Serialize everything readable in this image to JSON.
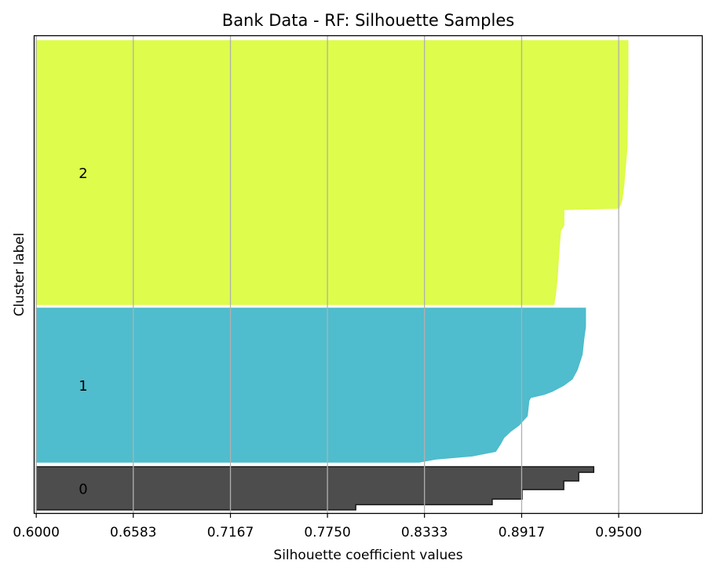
{
  "chart_data": {
    "type": "area",
    "orientation": "horizontal",
    "title": "Bank Data - RF: Silhouette Samples",
    "xlabel": "Silhouette coefficient values",
    "ylabel": "Cluster label",
    "xlim": [
      0.5985,
      1.0
    ],
    "xticks": [
      "0.6000",
      "0.6583",
      "0.7167",
      "0.7750",
      "0.8333",
      "0.8917",
      "0.9500"
    ],
    "grid": "vertical",
    "clusters": [
      {
        "label": "0",
        "color": "#4d4d4d",
        "profile": [
          [
            0.0,
            0.935
          ],
          [
            0.13,
            0.935
          ],
          [
            0.13,
            0.926
          ],
          [
            0.33,
            0.926
          ],
          [
            0.33,
            0.917
          ],
          [
            0.53,
            0.917
          ],
          [
            0.53,
            0.892
          ],
          [
            0.75,
            0.892
          ],
          [
            0.75,
            0.874
          ],
          [
            0.88,
            0.874
          ],
          [
            0.88,
            0.792
          ],
          [
            1.0,
            0.792
          ]
        ]
      },
      {
        "label": "1",
        "color": "#4bbccc",
        "profile": [
          [
            0.0,
            0.93
          ],
          [
            0.05,
            0.93
          ],
          [
            0.12,
            0.93
          ],
          [
            0.2,
            0.929
          ],
          [
            0.3,
            0.928
          ],
          [
            0.4,
            0.925
          ],
          [
            0.46,
            0.922
          ],
          [
            0.5,
            0.917
          ],
          [
            0.54,
            0.91
          ],
          [
            0.56,
            0.905
          ],
          [
            0.58,
            0.897
          ],
          [
            0.6,
            0.896
          ],
          [
            0.7,
            0.895
          ],
          [
            0.76,
            0.89
          ],
          [
            0.8,
            0.885
          ],
          [
            0.84,
            0.881
          ],
          [
            0.88,
            0.879
          ],
          [
            0.93,
            0.876
          ],
          [
            0.96,
            0.862
          ],
          [
            0.98,
            0.84
          ],
          [
            1.0,
            0.83
          ]
        ]
      },
      {
        "label": "2",
        "color": "#dcfc47",
        "profile": [
          [
            0.0,
            0.9555
          ],
          [
            0.15,
            0.9555
          ],
          [
            0.4,
            0.955
          ],
          [
            0.55,
            0.953
          ],
          [
            0.6,
            0.952
          ],
          [
            0.62,
            0.951
          ],
          [
            0.635,
            0.95
          ],
          [
            0.64,
            0.917
          ],
          [
            0.7,
            0.917
          ],
          [
            0.72,
            0.915
          ],
          [
            0.8,
            0.914
          ],
          [
            0.9,
            0.913
          ],
          [
            0.96,
            0.912
          ],
          [
            1.0,
            0.911
          ]
        ]
      }
    ]
  }
}
